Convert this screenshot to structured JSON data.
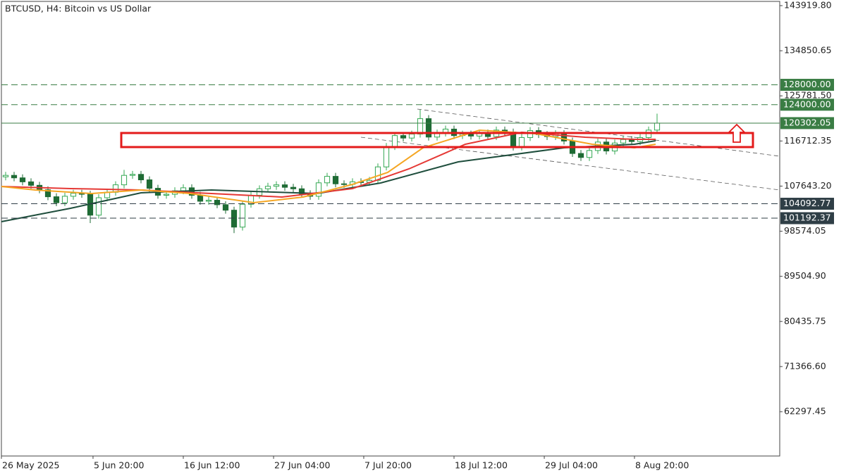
{
  "chart_data": {
    "type": "candlestick",
    "title": "BTCUSD, H4:  Bitcoin vs US Dollar",
    "xlim": [
      0,
      92
    ],
    "xticks": [
      {
        "value": 0,
        "label": "26 May 2025"
      },
      {
        "value": 10.83,
        "label": "5 Jun 20:00"
      },
      {
        "value": 21.5,
        "label": "16 Jun 12:00"
      },
      {
        "value": 32.17,
        "label": "27 Jun 04:00"
      },
      {
        "value": 42.83,
        "label": "7 Jul 20:00"
      },
      {
        "value": 53.5,
        "label": "18 Jul 12:00"
      },
      {
        "value": 64.17,
        "label": "29 Jul 04:00"
      },
      {
        "value": 74.83,
        "label": "8 Aug 20:00"
      }
    ],
    "ylim": [
      53385,
      144768
    ],
    "yticks": [
      {
        "value": 143919.8,
        "label": "143919.80"
      },
      134850.65,
      {
        "value": 125781.5,
        "label": "125781.50"
      },
      116712.35,
      {
        "value": 107643.2,
        "label": "107643.20"
      },
      98574.05,
      {
        "value": 89504.9,
        "label": "89504.90"
      },
      80435.75,
      {
        "value": 71366.6,
        "label": "71366.60"
      },
      62297.45
    ],
    "up_color": "#34a853",
    "down_color": "#1e6b34",
    "x": [
      0.5,
      1.5,
      2.5,
      3.5,
      4.5,
      5.5,
      6.5,
      7.5,
      8.5,
      9.5,
      10.5,
      11.5,
      12.5,
      13.5,
      14.5,
      15.5,
      16.5,
      17.5,
      18.5,
      19.5,
      20.5,
      21.5,
      22.5,
      23.5,
      24.5,
      25.5,
      26.5,
      27.5,
      28.5,
      29.5,
      30.5,
      31.5,
      32.5,
      33.5,
      34.5,
      35.5,
      36.5,
      37.5,
      38.5,
      39.5,
      40.5,
      41.5,
      42.5,
      43.5,
      44.5,
      45.5,
      46.5,
      47.5,
      48.5,
      49.5,
      50.5,
      51.5,
      52.5,
      53.5,
      54.5,
      55.5,
      56.5,
      57.5,
      58.5,
      59.5,
      60.5,
      61.5,
      62.5,
      63.5,
      64.5,
      65.5,
      66.5,
      67.5,
      68.5,
      69.5,
      70.5,
      71.5,
      72.5,
      73.5,
      74.5,
      75.5,
      76.5,
      77.5
    ],
    "open": [
      109500,
      109800,
      109300,
      108500,
      107800,
      106900,
      105500,
      104300,
      105600,
      106200,
      106000,
      101800,
      105300,
      106400,
      107900,
      109800,
      110000,
      108900,
      107200,
      105800,
      106000,
      106700,
      107300,
      105800,
      104600,
      104800,
      103900,
      102800,
      99400,
      104000,
      105800,
      107100,
      107600,
      107900,
      107400,
      107100,
      106100,
      105600,
      108300,
      109600,
      108100,
      108000,
      108500,
      108400,
      108800,
      111500,
      115600,
      117800,
      117300,
      118100,
      121200,
      117500,
      118300,
      119100,
      117800,
      118100,
      117700,
      118300,
      117600,
      118900,
      118500,
      115500,
      117400,
      118800,
      118000,
      117600,
      118200,
      116700,
      114200,
      113400,
      114800,
      116500,
      114700,
      116300,
      117000,
      116600,
      117400,
      118900
    ],
    "high": [
      110500,
      110500,
      110000,
      109200,
      108500,
      107600,
      106200,
      106300,
      106900,
      106900,
      106700,
      106000,
      107100,
      108600,
      110900,
      110700,
      110700,
      109600,
      107900,
      106700,
      107400,
      108000,
      108000,
      106500,
      105500,
      105500,
      104600,
      103500,
      104700,
      106500,
      107800,
      108300,
      108600,
      108600,
      108100,
      107800,
      106800,
      109000,
      110300,
      110300,
      108800,
      109200,
      109200,
      109500,
      112200,
      116300,
      118500,
      118500,
      118800,
      123000,
      121900,
      119000,
      119800,
      119800,
      118800,
      118800,
      119000,
      119000,
      119600,
      119600,
      119200,
      118100,
      119500,
      119500,
      118700,
      118900,
      118900,
      117400,
      114900,
      115500,
      117200,
      117200,
      117000,
      117700,
      117700,
      118100,
      119600,
      122200
    ],
    "low": [
      108800,
      108600,
      107800,
      107100,
      106200,
      104800,
      103600,
      103600,
      104900,
      105300,
      100200,
      101100,
      104600,
      105700,
      107200,
      109100,
      108200,
      106500,
      105100,
      105100,
      105300,
      106000,
      105100,
      103900,
      103900,
      103200,
      102100,
      98200,
      98700,
      103300,
      105100,
      106400,
      106900,
      106700,
      106400,
      105400,
      104900,
      104900,
      107600,
      107400,
      107300,
      107300,
      107700,
      107700,
      108100,
      110800,
      114900,
      116600,
      116600,
      117400,
      116800,
      116800,
      117600,
      117100,
      117100,
      117000,
      117000,
      116900,
      116900,
      117800,
      114800,
      114800,
      116700,
      117300,
      116900,
      116900,
      116000,
      113500,
      112700,
      112700,
      114100,
      114000,
      114000,
      115600,
      115900,
      115900,
      116700,
      118200
    ],
    "close": [
      109800,
      109300,
      108500,
      107800,
      106900,
      105500,
      104300,
      105600,
      106200,
      106000,
      101800,
      105300,
      106400,
      107900,
      109800,
      110000,
      108900,
      107200,
      105800,
      106000,
      106700,
      107300,
      105800,
      104600,
      104800,
      103900,
      102800,
      99400,
      104000,
      105800,
      107100,
      107600,
      107900,
      107400,
      107100,
      106100,
      105600,
      108300,
      109600,
      108100,
      108000,
      108500,
      108400,
      108800,
      111500,
      115600,
      117800,
      117300,
      118100,
      121200,
      117500,
      118300,
      119100,
      117800,
      118100,
      117700,
      118300,
      117600,
      118900,
      118500,
      115500,
      117400,
      118800,
      118000,
      117600,
      118200,
      116700,
      114200,
      113400,
      114800,
      116500,
      114700,
      116300,
      117000,
      116600,
      117400,
      118900,
      120300
    ],
    "series": [
      {
        "color": "#1f4e3d",
        "x": [
          0,
          8.17,
          16.5,
          24.83,
          37.33,
          44.83,
          54,
          66.5,
          74.83,
          77.33
        ],
        "values": [
          100494,
          103182,
          106291,
          106857,
          106150,
          108272,
          112517,
          115350,
          116052,
          116760
        ]
      },
      {
        "color": "#e53935",
        "x": [
          0,
          8.17,
          16.5,
          24.83,
          33.17,
          41.5,
          48.17,
          54.83,
          61.5,
          69,
          74.83,
          77.33
        ],
        "values": [
          107564,
          107140,
          106857,
          106150,
          105442,
          107140,
          111102,
          116052,
          118457,
          117468,
          117045,
          117045
        ]
      },
      {
        "color": "#f5a623",
        "x": [
          0,
          4,
          10.67,
          16.5,
          22.33,
          29.83,
          35.67,
          41.5,
          45.67,
          49.83,
          56.5,
          63.17,
          69.83,
          74.83,
          77.33
        ],
        "values": [
          107564,
          106857,
          106150,
          106857,
          106150,
          104310,
          105442,
          107990,
          110395,
          115350,
          118880,
          118175,
          116052,
          115350,
          116052
        ]
      }
    ],
    "levels": [
      {
        "value": 128000,
        "label": "128000.00",
        "style": "dashed",
        "color": "#3a7d44"
      },
      {
        "value": 124000,
        "label": "124000.00",
        "style": "dashed",
        "color": "#3a7d44"
      },
      {
        "value": 120302.05,
        "label": "120302.05",
        "style": "solid",
        "color": "#3a7d44"
      },
      {
        "value": 104092.77,
        "label": "104092.77",
        "style": "dashed",
        "color": "#2f3e46"
      },
      {
        "value": 101192.37,
        "label": "101192.37",
        "style": "dashed",
        "color": "#2f3e46"
      }
    ]
  }
}
